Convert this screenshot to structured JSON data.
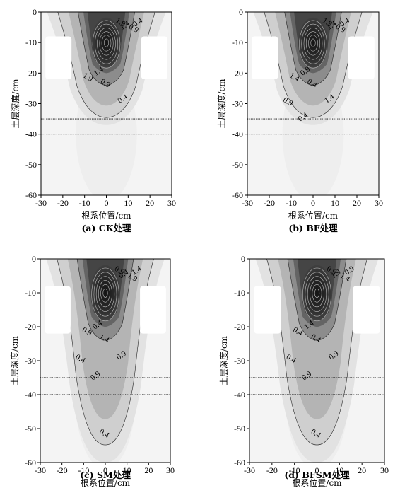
{
  "chart_data": [
    {
      "type": "contour",
      "panel": "a",
      "caption": "(a) CK处理",
      "xlabel": "根系位置/cm",
      "ylabel": "土层深度/cm",
      "xlim": [
        -30,
        30
      ],
      "ylim": [
        -60,
        0
      ],
      "xticks": [
        "-30",
        "-20",
        "-10",
        "0",
        "10",
        "20",
        "30"
      ],
      "yticks": [
        "0",
        "-10",
        "-20",
        "-30",
        "-40",
        "-50",
        "-60"
      ],
      "reference_lines_y": [
        -35,
        -40
      ],
      "peak": {
        "x": 0,
        "y": -10
      },
      "max_depth": -37,
      "contour_labels": [
        "1.9",
        "1.4",
        "0.9",
        "0.4",
        "1.9",
        "1.4",
        "0.9",
        "0.4"
      ]
    },
    {
      "type": "contour",
      "panel": "b",
      "caption": "(b) BF处理",
      "xlabel": "根系位置/cm",
      "ylabel": "土层深度/cm",
      "xlim": [
        -30,
        30
      ],
      "ylim": [
        -60,
        0
      ],
      "xticks": [
        "-30",
        "-20",
        "-10",
        "0",
        "10",
        "20",
        "30"
      ],
      "yticks": [
        "0",
        "-10",
        "-20",
        "-30",
        "-40",
        "-50",
        "-60"
      ],
      "reference_lines_y": [
        -35,
        -40
      ],
      "peak": {
        "x": 0,
        "y": -10
      },
      "max_depth": -37,
      "contour_labels": [
        "1.9",
        "1.4",
        "0.9",
        "0.4",
        "1.4",
        "0.9",
        "0.4",
        "1.4",
        "0.9",
        "0.4"
      ]
    },
    {
      "type": "contour",
      "panel": "c",
      "caption": "(c) SM处理",
      "xlabel": "根系位置/cm",
      "ylabel": "土层深度/cm",
      "xlim": [
        -30,
        30
      ],
      "ylim": [
        -60,
        0
      ],
      "xticks": [
        "-30",
        "-20",
        "-10",
        "0",
        "10",
        "20",
        "30"
      ],
      "yticks": [
        "0",
        "-10",
        "-20",
        "-30",
        "-40",
        "-50",
        "-60"
      ],
      "reference_lines_y": [
        -35,
        -40
      ],
      "peak": {
        "x": 0,
        "y": -10
      },
      "max_depth": -60,
      "contour_labels": [
        "0.9",
        "0.4",
        "1.9",
        "1.4",
        "0.9",
        "0.4",
        "1.4",
        "0.9",
        "0.4",
        "0.9",
        "0.4"
      ]
    },
    {
      "type": "contour",
      "panel": "d",
      "caption": "(d) BFSM处理",
      "xlabel": "根系位置/cm",
      "ylabel": "土层深度/cm",
      "xlim": [
        -30,
        30
      ],
      "ylim": [
        -60,
        0
      ],
      "xticks": [
        "-30",
        "-20",
        "-10",
        "0",
        "10",
        "20",
        "30"
      ],
      "yticks": [
        "0",
        "-10",
        "-20",
        "-30",
        "-40",
        "-50",
        "-60"
      ],
      "reference_lines_y": [
        -35,
        -40
      ],
      "peak": {
        "x": 0,
        "y": -10
      },
      "max_depth": -60,
      "contour_labels": [
        "0.9",
        "1.9",
        "1.4",
        "0.9",
        "0.4",
        "1.4",
        "0.4",
        "0.9",
        "0.4",
        "0.9",
        "0.4"
      ]
    }
  ],
  "colors": {
    "line": "#000000",
    "shade_light": "#f4f4f4",
    "shade_dark": "#2c2c2c",
    "ring": "#bdbdbd"
  }
}
